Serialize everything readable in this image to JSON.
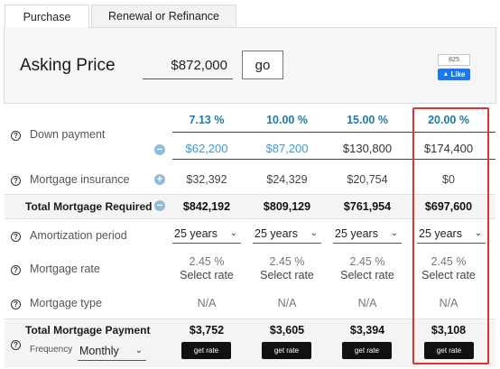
{
  "tabs": [
    {
      "label": "Purchase",
      "active": true
    },
    {
      "label": "Renewal or Refinance",
      "active": false
    }
  ],
  "asking_price": {
    "label": "Asking Price",
    "value": "$872,000",
    "go_label": "go"
  },
  "facebook": {
    "count": "825",
    "like_label": "Like"
  },
  "rows": {
    "down_payment": {
      "label": "Down payment",
      "percents": [
        "7.13 %",
        "10.00 %",
        "15.00 %",
        "20.00 %"
      ],
      "amounts": [
        "$62,200",
        "$87,200",
        "$130,800",
        "$174,400"
      ]
    },
    "mortgage_insurance": {
      "label": "Mortgage insurance",
      "values": [
        "$32,392",
        "$24,329",
        "$20,754",
        "$0"
      ]
    },
    "total_required": {
      "label": "Total Mortgage Required",
      "values": [
        "$842,192",
        "$809,129",
        "$761,954",
        "$697,600"
      ]
    },
    "amortization": {
      "label": "Amortization period",
      "values": [
        "25 years",
        "25 years",
        "25 years",
        "25 years"
      ]
    },
    "mortgage_rate": {
      "label": "Mortgage rate",
      "values": [
        "2.45 %",
        "2.45 %",
        "2.45 %",
        "2.45 %"
      ],
      "link_label": "Select rate"
    },
    "mortgage_type": {
      "label": "Mortgage type",
      "values": [
        "N/A",
        "N/A",
        "N/A",
        "N/A"
      ]
    },
    "total_payment": {
      "label": "Total Mortgage Payment",
      "values": [
        "$3,752",
        "$3,605",
        "$3,394",
        "$3,108"
      ],
      "frequency_label": "Frequency",
      "frequency_value": "Monthly",
      "button_label": "get rate"
    }
  },
  "colors": {
    "highlight": "#e53030",
    "accent": "#1f7aa8",
    "link": "#3a9bd0",
    "fb": "#1877f2"
  }
}
